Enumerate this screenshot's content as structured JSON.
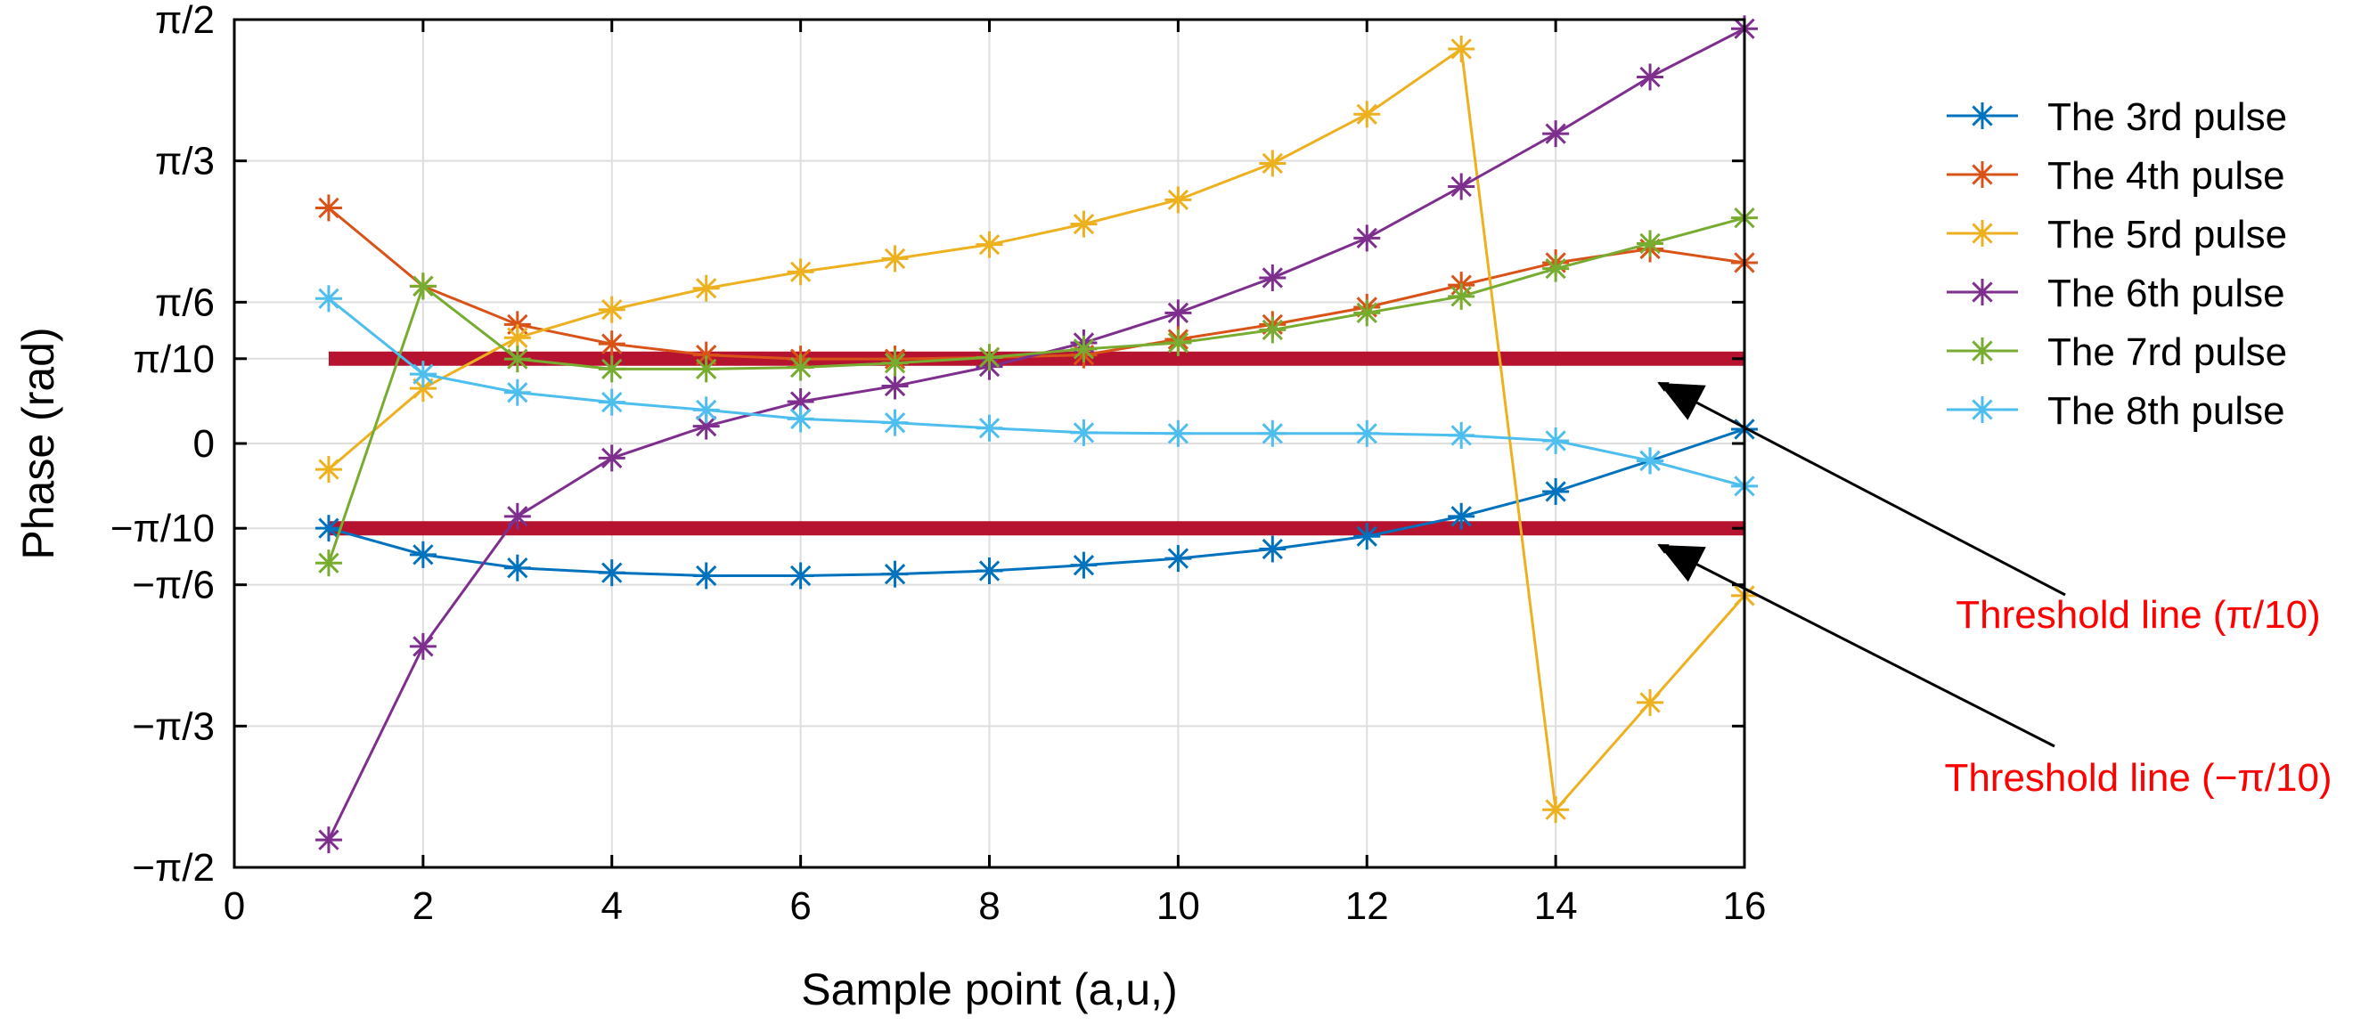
{
  "chart_data": {
    "type": "line",
    "title": "",
    "xlabel": "Sample point (a,u,)",
    "ylabel": "Phase (rad)",
    "xlim": [
      0,
      16
    ],
    "ylim": [
      -1.5708,
      1.5708
    ],
    "grid": true,
    "legend_position": "outside-top-right",
    "x_ticks": [
      {
        "value": 0,
        "label": "0"
      },
      {
        "value": 2,
        "label": "2"
      },
      {
        "value": 4,
        "label": "4"
      },
      {
        "value": 6,
        "label": "6"
      },
      {
        "value": 8,
        "label": "8"
      },
      {
        "value": 10,
        "label": "10"
      },
      {
        "value": 12,
        "label": "12"
      },
      {
        "value": 14,
        "label": "14"
      },
      {
        "value": 16,
        "label": "16"
      }
    ],
    "y_ticks": [
      {
        "value": -1.5708,
        "label": "−π/2"
      },
      {
        "value": -1.0472,
        "label": "−π/3"
      },
      {
        "value": -0.5236,
        "label": "−π/6"
      },
      {
        "value": -0.3142,
        "label": "−π/10"
      },
      {
        "value": 0,
        "label": "0"
      },
      {
        "value": 0.3142,
        "label": "π/10"
      },
      {
        "value": 0.5236,
        "label": "π/6"
      },
      {
        "value": 1.0472,
        "label": "π/3"
      },
      {
        "value": 1.5708,
        "label": "π/2"
      }
    ],
    "x": [
      1,
      2,
      3,
      4,
      5,
      6,
      7,
      8,
      9,
      10,
      11,
      12,
      13,
      14,
      15,
      16
    ],
    "series": [
      {
        "name": "The 3rd pulse",
        "color": "#0072BD",
        "values": [
          -0.314,
          -0.412,
          -0.461,
          -0.479,
          -0.49,
          -0.49,
          -0.484,
          -0.472,
          -0.451,
          -0.426,
          -0.391,
          -0.344,
          -0.27,
          -0.178,
          -0.064,
          0.053
        ]
      },
      {
        "name": "The 4th pulse",
        "color": "#D95319",
        "values": [
          0.873,
          0.583,
          0.441,
          0.369,
          0.328,
          0.313,
          0.313,
          0.319,
          0.328,
          0.386,
          0.441,
          0.505,
          0.587,
          0.67,
          0.721,
          0.67
        ]
      },
      {
        "name": "The 5rd pulse",
        "color": "#EDB120",
        "values": [
          -0.096,
          0.204,
          0.392,
          0.496,
          0.575,
          0.636,
          0.685,
          0.737,
          0.813,
          0.903,
          1.038,
          1.22,
          1.462,
          -1.357,
          -0.96,
          -0.564
        ]
      },
      {
        "name": "The 6th pulse",
        "color": "#7E2F8E",
        "values": [
          -1.469,
          -0.752,
          -0.27,
          -0.054,
          0.064,
          0.155,
          0.213,
          0.285,
          0.373,
          0.484,
          0.614,
          0.761,
          0.952,
          1.148,
          1.358,
          1.537
        ]
      },
      {
        "name": "The 7rd pulse",
        "color": "#77AC30",
        "values": [
          -0.443,
          0.583,
          0.313,
          0.276,
          0.276,
          0.282,
          0.298,
          0.319,
          0.35,
          0.373,
          0.421,
          0.484,
          0.545,
          0.648,
          0.741,
          0.836
        ]
      },
      {
        "name": "The 8th pulse",
        "color": "#4DBEEE",
        "values": [
          0.537,
          0.257,
          0.189,
          0.153,
          0.124,
          0.091,
          0.077,
          0.057,
          0.04,
          0.037,
          0.037,
          0.037,
          0.03,
          0.01,
          -0.064,
          -0.158
        ]
      }
    ],
    "threshold_lines": [
      {
        "name": "upper",
        "value": 0.3142,
        "x_range": [
          1,
          16
        ],
        "color": "#B5132F"
      },
      {
        "name": "lower",
        "value": -0.3142,
        "x_range": [
          1,
          16
        ],
        "color": "#B5132F"
      }
    ],
    "annotations": [
      {
        "text": "Threshold line (π/10)",
        "color": "#FF0000",
        "target_x": 15.5,
        "target_y": 0.3142
      },
      {
        "text": "Threshold line (−π/10)",
        "color": "#FF0000",
        "target_x": 15.5,
        "target_y": -0.3142
      }
    ]
  }
}
